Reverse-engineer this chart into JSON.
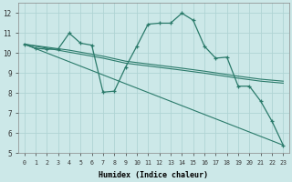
{
  "title": "",
  "xlabel": "Humidex (Indice chaleur)",
  "bg_color": "#cce8e8",
  "grid_color": "#b0d4d4",
  "line_color": "#2a7a6a",
  "xlim": [
    -0.5,
    23.5
  ],
  "ylim": [
    5,
    12.5
  ],
  "yticks": [
    5,
    6,
    7,
    8,
    9,
    10,
    11,
    12
  ],
  "xticks": [
    0,
    1,
    2,
    3,
    4,
    5,
    6,
    7,
    8,
    9,
    10,
    11,
    12,
    13,
    14,
    15,
    16,
    17,
    18,
    19,
    20,
    21,
    22,
    23
  ],
  "line_main": {
    "x": [
      0,
      1,
      2,
      3,
      4,
      5,
      6,
      7,
      8,
      9,
      10,
      11,
      12,
      13,
      14,
      15,
      16,
      17,
      18,
      19,
      20,
      21,
      22,
      23
    ],
    "y": [
      10.45,
      10.25,
      10.2,
      10.2,
      11.0,
      10.5,
      10.4,
      8.05,
      8.1,
      9.3,
      10.35,
      11.45,
      11.5,
      11.5,
      12.0,
      11.65,
      10.35,
      9.75,
      9.8,
      8.35,
      8.35,
      7.6,
      6.6,
      5.4
    ]
  },
  "line_smooth1": {
    "x": [
      0,
      4,
      7,
      9,
      14,
      16,
      19,
      21,
      23
    ],
    "y": [
      10.45,
      10.15,
      9.85,
      9.6,
      9.25,
      9.1,
      8.85,
      8.7,
      8.6
    ]
  },
  "line_smooth2": {
    "x": [
      0,
      4,
      7,
      9,
      14,
      16,
      19,
      21,
      23
    ],
    "y": [
      10.45,
      10.05,
      9.75,
      9.5,
      9.15,
      9.0,
      8.75,
      8.6,
      8.5
    ]
  },
  "line_straight": {
    "x": [
      0,
      23
    ],
    "y": [
      10.45,
      5.4
    ]
  }
}
